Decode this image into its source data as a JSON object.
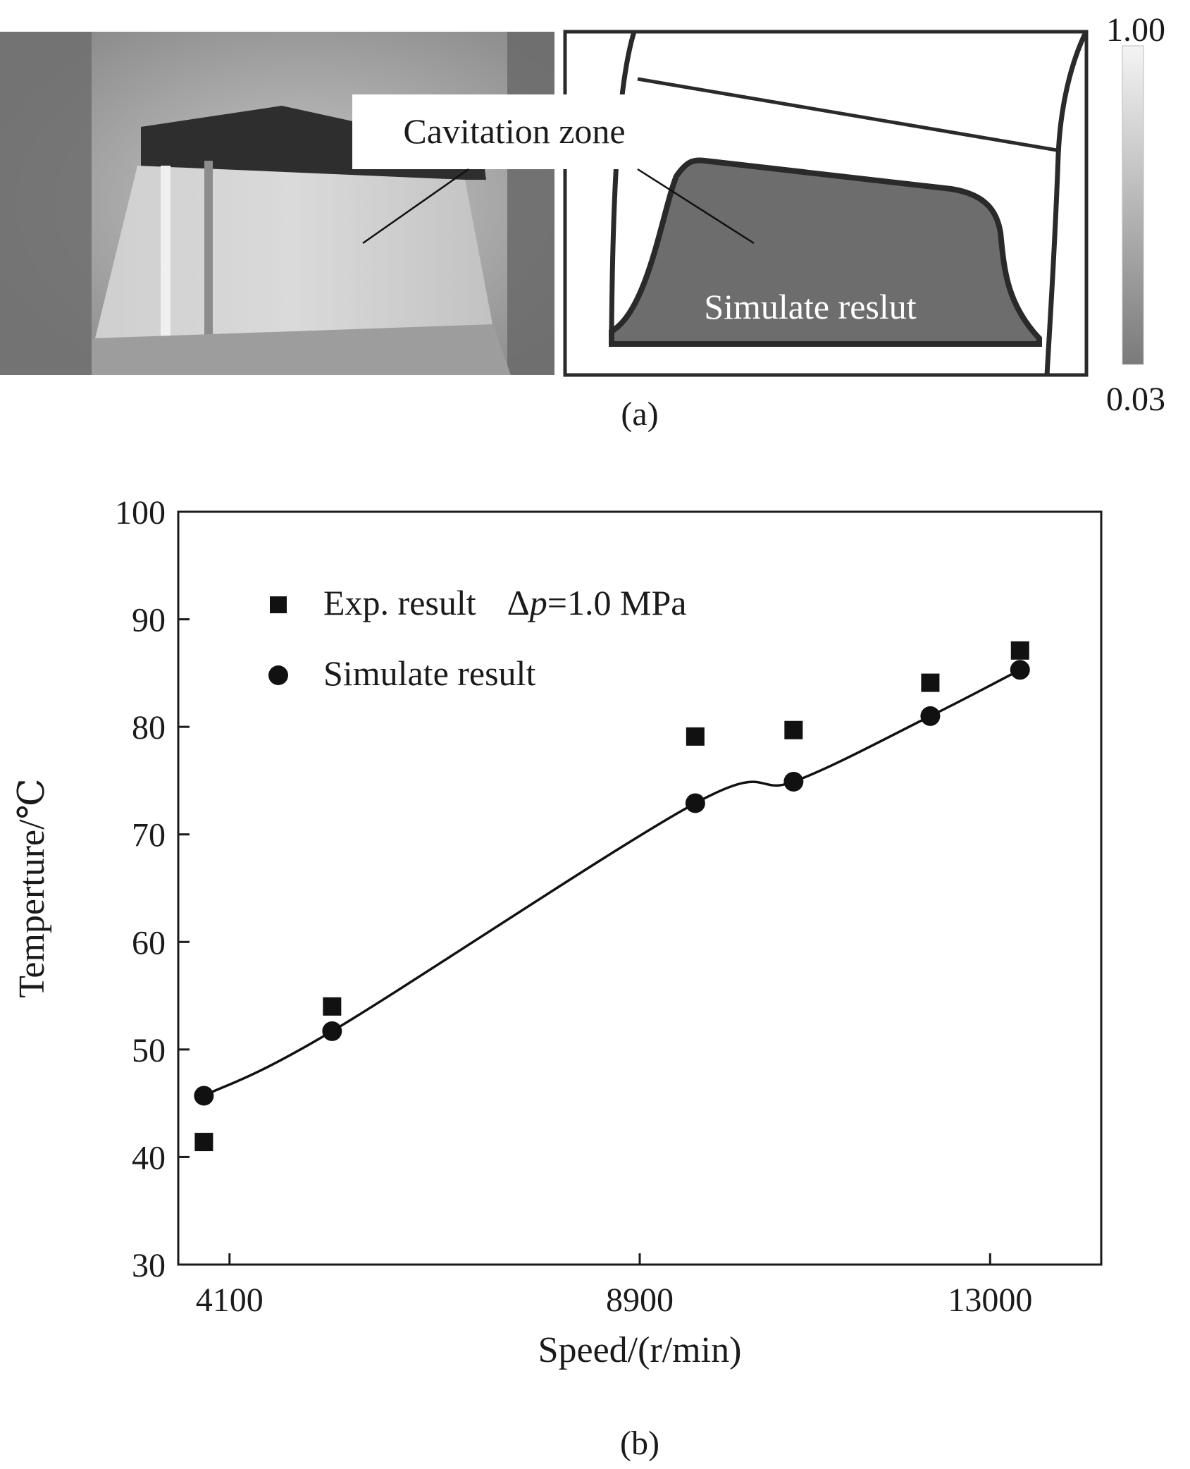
{
  "panel_a": {
    "label": "(a)",
    "photo_callout": "Cavitation zone",
    "simulation_callout": "Simulate reslut",
    "colorbar": {
      "max_label": "1.00",
      "min_label": "0.03",
      "max": 1.0,
      "min": 0.03
    }
  },
  "panel_b": {
    "label": "(b)"
  },
  "chart_data": {
    "type": "scatter",
    "xlabel": "Speed/(r/min)",
    "ylabel": "Temperture/℃",
    "xlim": [
      3500,
      14300
    ],
    "ylim": [
      30,
      100
    ],
    "x_ticks": [
      4100,
      8900,
      13000
    ],
    "y_ticks": [
      30,
      40,
      50,
      60,
      70,
      80,
      90,
      100
    ],
    "grid": false,
    "legend_position": "top-left",
    "series": [
      {
        "name": "Exp. result",
        "legend_suffix_prefix": "Δ",
        "legend_suffix_var": "p",
        "legend_suffix_value": "=1.0 MPa",
        "marker": "square",
        "points": [
          [
            3800,
            41.4
          ],
          [
            5300,
            54.0
          ],
          [
            9550,
            79.1
          ],
          [
            10700,
            79.7
          ],
          [
            12300,
            84.1
          ],
          [
            13350,
            87.1
          ]
        ]
      },
      {
        "name": "Simulate result",
        "marker": "circle",
        "fit_curve": true,
        "points": [
          [
            3800,
            45.7
          ],
          [
            5300,
            51.7
          ],
          [
            9550,
            72.9
          ],
          [
            10700,
            74.9
          ],
          [
            12300,
            81.0
          ],
          [
            13350,
            85.3
          ]
        ]
      }
    ]
  }
}
